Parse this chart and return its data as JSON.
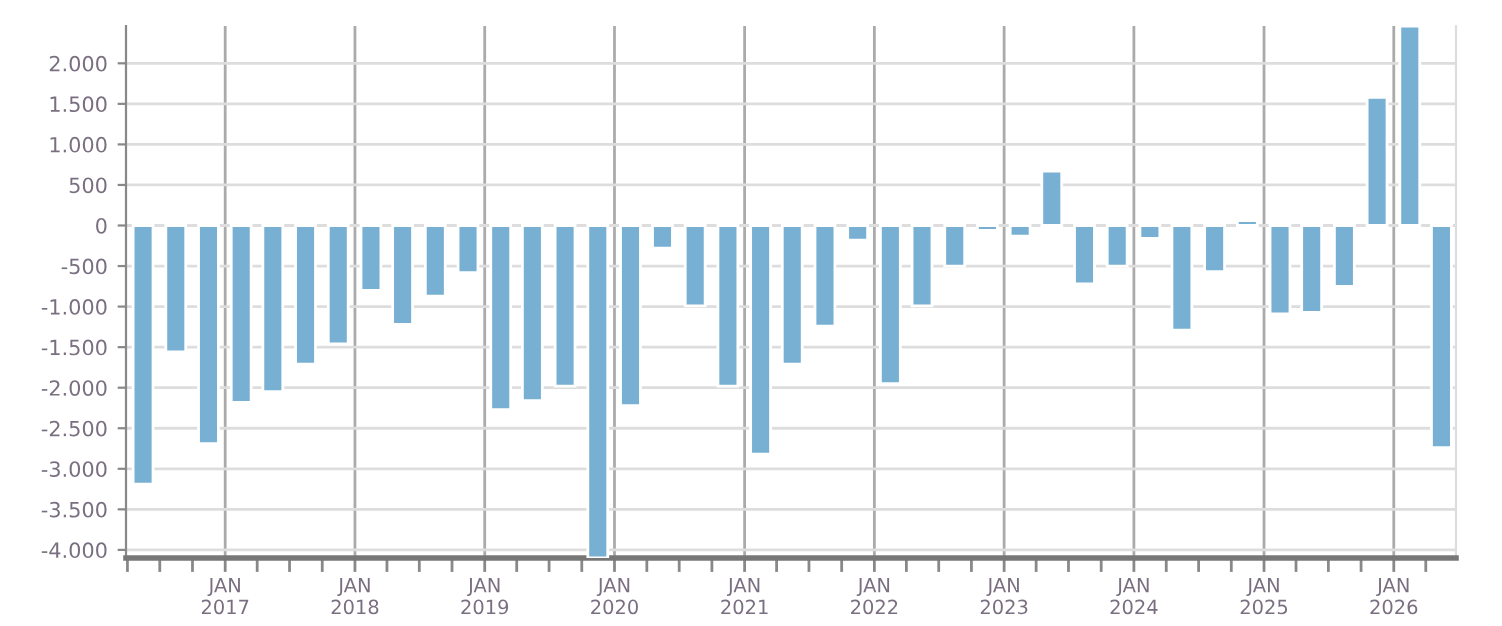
{
  "chart_data": {
    "type": "bar",
    "color": "#78b0d3",
    "x": [
      "2016-05-15",
      "2016-08-15",
      "2016-11-15",
      "2017-02-15",
      "2017-05-15",
      "2017-08-15",
      "2017-11-15",
      "2018-02-15",
      "2018-05-15",
      "2018-08-15",
      "2018-11-15",
      "2019-02-15",
      "2019-05-15",
      "2019-08-15",
      "2019-11-15",
      "2020-02-15",
      "2020-05-15",
      "2020-08-15",
      "2020-11-15",
      "2021-02-15",
      "2021-05-15",
      "2021-08-15",
      "2021-11-15",
      "2022-02-15",
      "2022-05-15",
      "2022-08-15",
      "2022-11-15",
      "2023-02-15",
      "2023-05-15",
      "2023-08-15",
      "2023-11-15",
      "2024-02-15",
      "2024-05-15",
      "2024-08-15",
      "2024-11-15",
      "2025-02-15",
      "2025-05-15",
      "2025-08-15",
      "2025-11-15",
      "2026-02-15",
      "2026-05-15"
    ],
    "values": [
      -3190,
      -1560,
      -2690,
      -2180,
      -2050,
      -1710,
      -1460,
      -800,
      -1220,
      -870,
      -580,
      -2270,
      -2160,
      -1980,
      -4100,
      -2220,
      -280,
      -990,
      -1980,
      -2820,
      -1710,
      -1240,
      -180,
      -1950,
      -990,
      -500,
      -60,
      -130,
      670,
      -720,
      -500,
      -160,
      -1290,
      -570,
      60,
      -1090,
      -1070,
      -750,
      1580,
      2460,
      -2740
    ],
    "xlim": [
      "2016-03-28",
      "2026-06-25"
    ],
    "xticks": [
      {
        "value": "2016-04-01",
        "label": null
      },
      {
        "value": "2016-07-01",
        "label": null
      },
      {
        "value": "2016-10-01",
        "label": null
      },
      {
        "value": "2017-01-01",
        "label": "JAN\n2017"
      },
      {
        "value": "2017-04-01",
        "label": null
      },
      {
        "value": "2017-07-01",
        "label": null
      },
      {
        "value": "2017-10-01",
        "label": null
      },
      {
        "value": "2018-01-01",
        "label": "JAN\n2018"
      },
      {
        "value": "2018-04-01",
        "label": null
      },
      {
        "value": "2018-07-01",
        "label": null
      },
      {
        "value": "2018-10-01",
        "label": null
      },
      {
        "value": "2019-01-01",
        "label": "JAN\n2019"
      },
      {
        "value": "2019-04-01",
        "label": null
      },
      {
        "value": "2019-07-01",
        "label": null
      },
      {
        "value": "2019-10-01",
        "label": null
      },
      {
        "value": "2020-01-01",
        "label": "JAN\n2020"
      },
      {
        "value": "2020-04-01",
        "label": null
      },
      {
        "value": "2020-07-01",
        "label": null
      },
      {
        "value": "2020-10-01",
        "label": null
      },
      {
        "value": "2021-01-01",
        "label": "JAN\n2021"
      },
      {
        "value": "2021-04-01",
        "label": null
      },
      {
        "value": "2021-07-01",
        "label": null
      },
      {
        "value": "2021-10-01",
        "label": null
      },
      {
        "value": "2022-01-01",
        "label": "JAN\n2022"
      },
      {
        "value": "2022-04-01",
        "label": null
      },
      {
        "value": "2022-07-01",
        "label": null
      },
      {
        "value": "2022-10-01",
        "label": null
      },
      {
        "value": "2023-01-01",
        "label": "JAN\n2023"
      },
      {
        "value": "2023-04-01",
        "label": null
      },
      {
        "value": "2023-07-01",
        "label": null
      },
      {
        "value": "2023-10-01",
        "label": null
      },
      {
        "value": "2024-01-01",
        "label": "JAN\n2024"
      },
      {
        "value": "2024-04-01",
        "label": null
      },
      {
        "value": "2024-07-01",
        "label": null
      },
      {
        "value": "2024-10-01",
        "label": null
      },
      {
        "value": "2025-01-01",
        "label": "JAN\n2025"
      },
      {
        "value": "2025-04-01",
        "label": null
      },
      {
        "value": "2025-07-01",
        "label": null
      },
      {
        "value": "2025-10-01",
        "label": null
      },
      {
        "value": "2026-01-01",
        "label": "JAN\n2026"
      },
      {
        "value": "2026-04-01",
        "label": null
      }
    ],
    "ylim": [
      -4100,
      2460
    ],
    "yticks": [
      {
        "value": -4000,
        "label": "-4.000"
      },
      {
        "value": -3500,
        "label": "-3.500"
      },
      {
        "value": -3000,
        "label": "-3.000"
      },
      {
        "value": -2500,
        "label": "-2.500"
      },
      {
        "value": -2000,
        "label": "-2.000"
      },
      {
        "value": -1500,
        "label": "-1.500"
      },
      {
        "value": -1000,
        "label": "-1.000"
      },
      {
        "value": -500,
        "label": "-500"
      },
      {
        "value": 0,
        "label": "0"
      },
      {
        "value": 500,
        "label": "500"
      },
      {
        "value": 1000,
        "label": "1.000"
      },
      {
        "value": 1500,
        "label": "1.500"
      },
      {
        "value": 2000,
        "label": "2.000"
      }
    ],
    "grid": true
  }
}
